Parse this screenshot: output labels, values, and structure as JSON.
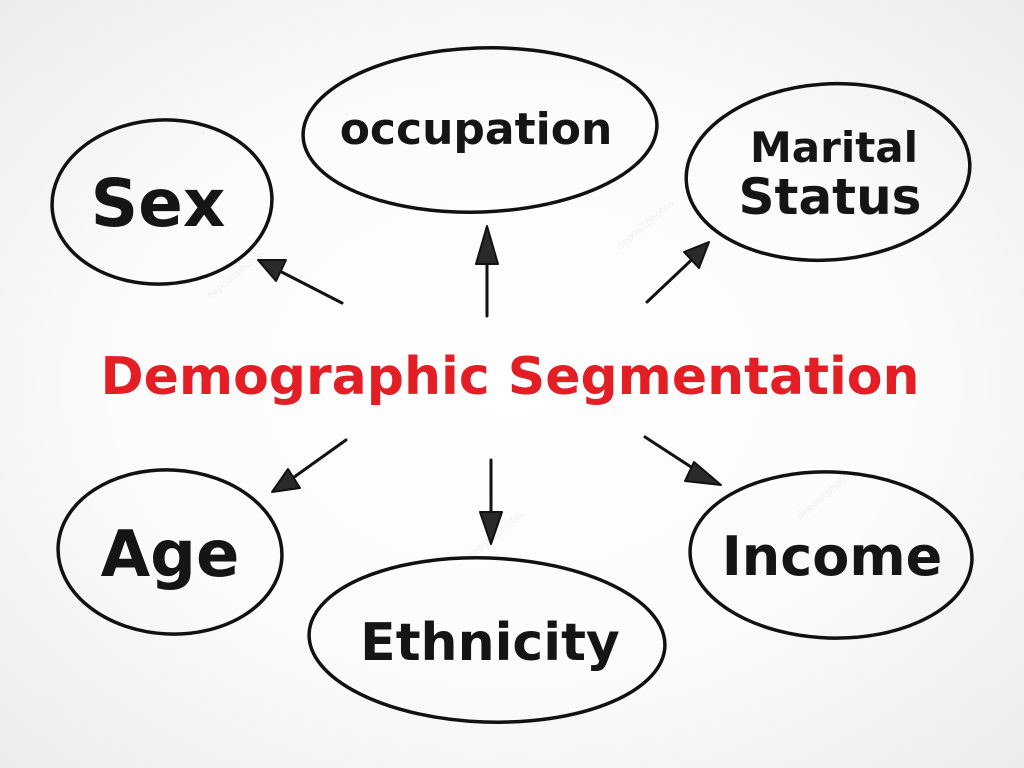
{
  "diagram": {
    "center": {
      "text": "Demographic Segmentation",
      "color": "#e31e24"
    },
    "nodes": {
      "sex": "Sex",
      "occupation": "occupation",
      "marital_line1": "Marital",
      "marital_line2": "Status",
      "age": "Age",
      "ethnicity": "Ethnicity",
      "income": "Income"
    },
    "colors": {
      "ink": "#111111",
      "background": "#ffffff"
    }
  },
  "watermark": {
    "brand": "depositphotos"
  }
}
